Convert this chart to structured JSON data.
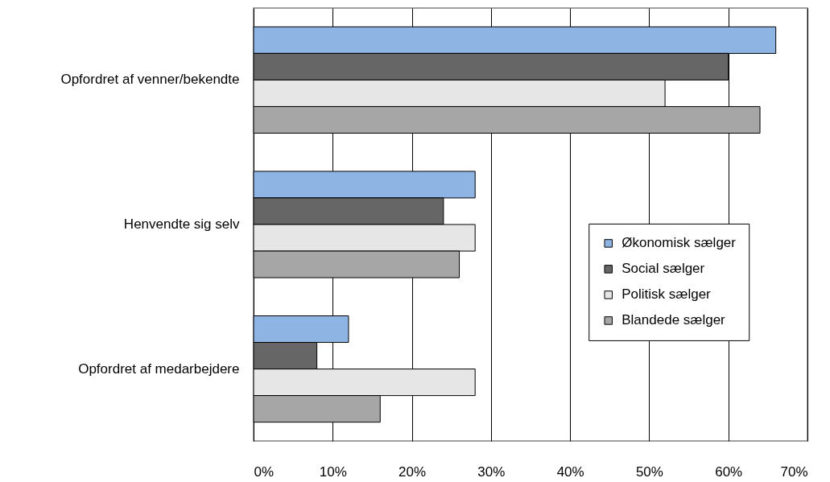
{
  "chart_data": {
    "type": "bar",
    "orientation": "horizontal",
    "categories": [
      "Opfordret af venner/bekendte",
      "Henvendte sig selv",
      "Opfordret af medarbejdere"
    ],
    "series": [
      {
        "name": "Økonomisk sælger",
        "color": "#8eb4e3",
        "values": [
          66,
          28,
          12
        ]
      },
      {
        "name": "Social sælger",
        "color": "#666666",
        "values": [
          60,
          24,
          8
        ]
      },
      {
        "name": "Politisk sælger",
        "color": "#e6e6e6",
        "values": [
          52,
          28,
          28
        ]
      },
      {
        "name": "Blandede sælger",
        "color": "#a6a6a6",
        "values": [
          64,
          26,
          16
        ]
      }
    ],
    "xlim": [
      0,
      70
    ],
    "xticks": [
      {
        "value": 0,
        "label": "0%"
      },
      {
        "value": 10,
        "label": "10%"
      },
      {
        "value": 20,
        "label": "20%"
      },
      {
        "value": 30,
        "label": "30%"
      },
      {
        "value": 40,
        "label": "40%"
      },
      {
        "value": 50,
        "label": "50%"
      },
      {
        "value": 60,
        "label": "60%"
      },
      {
        "value": 70,
        "label": "70%"
      }
    ],
    "grid": "x",
    "legend": "right"
  }
}
